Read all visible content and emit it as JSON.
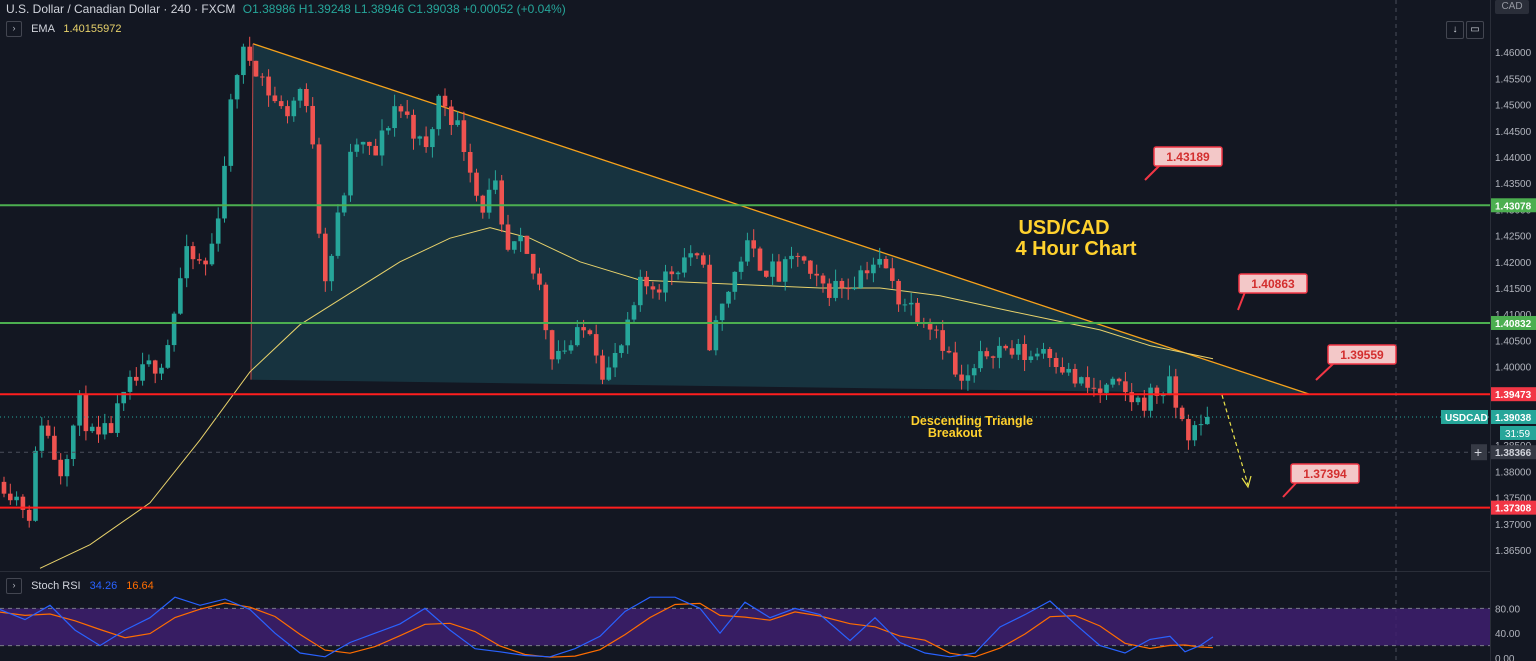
{
  "header": {
    "symbol": "U.S. Dollar / Canadian Dollar · 240 · FXCM",
    "ohlc": "O1.38986 H1.39248 L1.38946 C1.39038 +0.00052 (+0.04%)"
  },
  "ema": {
    "label": "EMA",
    "value": "1.40155972"
  },
  "stoch": {
    "label": "Stoch RSI",
    "k": "34.26",
    "d": "16.64"
  },
  "currency_label": "CAD",
  "countdown": "31:59",
  "colors": {
    "bg": "#131722",
    "up": "#26a69a",
    "down": "#ef5350",
    "green_line": "#4caf50",
    "red_line": "#ff1e1e",
    "trend": "#f7a21b",
    "ema": "#e8d26b"
  },
  "chart_data": {
    "type": "candlestick",
    "title": "USD/CAD 4 Hour Chart",
    "title_lines": [
      "USD/CAD",
      "4 Hour Chart"
    ],
    "annotation": [
      "Descending Triangle",
      "Breakout"
    ],
    "price_axis": {
      "ylim": [
        1.3608,
        1.4648
      ],
      "ticks": [
        "1.46000",
        "1.45500",
        "1.45000",
        "1.44500",
        "1.44000",
        "1.43500",
        "1.43000",
        "1.42500",
        "1.42000",
        "1.41500",
        "1.41000",
        "1.40500",
        "1.40000",
        "1.39500",
        "1.38500",
        "1.38000",
        "1.37500",
        "1.37000",
        "1.36500"
      ]
    },
    "levels": [
      {
        "price": 1.43078,
        "label": "1.43078",
        "type": "support-resistance",
        "color": "#4caf50"
      },
      {
        "price": 1.40832,
        "label": "1.40832",
        "type": "support-resistance",
        "color": "#4caf50"
      },
      {
        "price": 1.39473,
        "label": "1.39473",
        "type": "support-resistance",
        "color": "#ff1e1e"
      },
      {
        "price": 1.37308,
        "label": "1.37308",
        "type": "support-resistance",
        "color": "#ff1e1e"
      }
    ],
    "callouts": [
      "1.43189",
      "1.40863",
      "1.39559",
      "1.37394"
    ],
    "current": {
      "symbol": "USDCAD",
      "price": "1.39038"
    },
    "crosshair": {
      "price": "1.38366"
    },
    "triangle": {
      "top": 1.4616,
      "left_bottom": 1.3975,
      "apex": 1.3947
    },
    "stoch_axis": {
      "ylim": [
        0,
        100
      ],
      "ticks": [
        "80.00",
        "40.00",
        "0.00"
      ],
      "band": [
        20,
        80
      ]
    }
  }
}
